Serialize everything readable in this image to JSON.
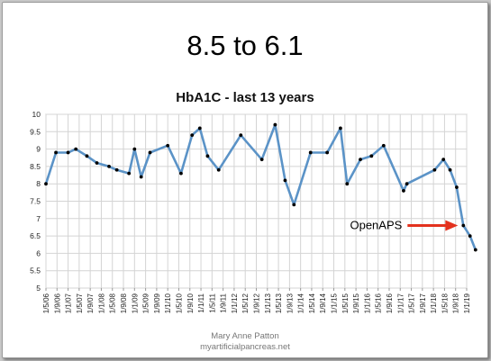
{
  "slide": {
    "title": "8.5 to 6.1",
    "credit_name": "Mary Anne Patton",
    "credit_site": "myartificialpancreas.net"
  },
  "colors": {
    "line": "#5b93c7",
    "marker": "#000000",
    "arrow": "#e3321e",
    "grid": "#d4d4d4"
  },
  "chart_data": {
    "type": "line",
    "title": "HbA1C - last 13 years",
    "xlabel": "",
    "ylabel": "",
    "ylim": [
      5,
      10
    ],
    "yticks": [
      "5",
      "5.5",
      "6",
      "6.5",
      "7",
      "7.5",
      "8",
      "8.5",
      "9",
      "9.5",
      "10"
    ],
    "grid": true,
    "categories": [
      "1/5/06",
      "1/9/06",
      "1/1/07",
      "1/5/07",
      "1/9/07",
      "1/1/08",
      "1/5/08",
      "1/9/08",
      "1/1/09",
      "1/5/09",
      "1/9/09",
      "1/1/10",
      "1/5/10",
      "1/9/10",
      "1/1/11",
      "1/5/11",
      "1/9/11",
      "1/1/12",
      "1/5/12",
      "1/9/12",
      "1/1/13",
      "1/5/13",
      "1/9/13",
      "1/1/14",
      "1/5/14",
      "1/9/14",
      "1/1/15",
      "1/5/15",
      "1/9/15",
      "1/1/16",
      "1/5/16",
      "1/9/16",
      "1/1/17",
      "1/5/17",
      "1/9/17",
      "1/1/18",
      "1/5/18",
      "1/9/18",
      "1/1/19"
    ],
    "points": [
      {
        "x": 0.0,
        "y": 8.0
      },
      {
        "x": 0.9,
        "y": 8.9
      },
      {
        "x": 2.0,
        "y": 8.9
      },
      {
        "x": 2.7,
        "y": 9.0
      },
      {
        "x": 3.7,
        "y": 8.8
      },
      {
        "x": 4.6,
        "y": 8.6
      },
      {
        "x": 5.7,
        "y": 8.5
      },
      {
        "x": 6.4,
        "y": 8.4
      },
      {
        "x": 7.5,
        "y": 8.3
      },
      {
        "x": 8.0,
        "y": 9.0
      },
      {
        "x": 8.6,
        "y": 8.2
      },
      {
        "x": 9.4,
        "y": 8.9
      },
      {
        "x": 11.0,
        "y": 9.1
      },
      {
        "x": 12.2,
        "y": 8.3
      },
      {
        "x": 13.2,
        "y": 9.4
      },
      {
        "x": 13.9,
        "y": 9.6
      },
      {
        "x": 14.6,
        "y": 8.8
      },
      {
        "x": 15.6,
        "y": 8.4
      },
      {
        "x": 17.6,
        "y": 9.4
      },
      {
        "x": 19.5,
        "y": 8.7
      },
      {
        "x": 20.7,
        "y": 9.7
      },
      {
        "x": 21.6,
        "y": 8.1
      },
      {
        "x": 22.4,
        "y": 7.4
      },
      {
        "x": 23.9,
        "y": 8.9
      },
      {
        "x": 25.4,
        "y": 8.9
      },
      {
        "x": 26.6,
        "y": 9.6
      },
      {
        "x": 27.2,
        "y": 8.0
      },
      {
        "x": 28.4,
        "y": 8.7
      },
      {
        "x": 29.4,
        "y": 8.8
      },
      {
        "x": 30.5,
        "y": 9.1
      },
      {
        "x": 32.3,
        "y": 7.8
      },
      {
        "x": 32.6,
        "y": 8.0
      },
      {
        "x": 35.1,
        "y": 8.4
      },
      {
        "x": 35.9,
        "y": 8.7
      },
      {
        "x": 36.5,
        "y": 8.4
      },
      {
        "x": 37.1,
        "y": 7.9
      },
      {
        "x": 37.7,
        "y": 6.8
      },
      {
        "x": 38.3,
        "y": 6.5
      },
      {
        "x": 38.8,
        "y": 6.1
      }
    ],
    "annotations": [
      {
        "text": "OpenAPS",
        "points_to_index": 36
      }
    ]
  }
}
